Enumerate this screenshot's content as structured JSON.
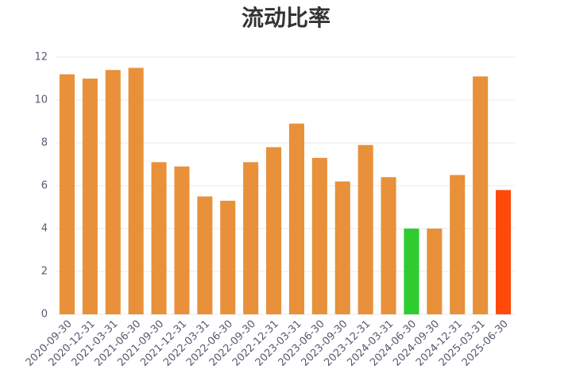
{
  "chart_data": {
    "type": "bar",
    "title": "流动比率",
    "categories": [
      "2020-09-30",
      "2020-12-31",
      "2021-03-31",
      "2021-06-30",
      "2021-09-30",
      "2021-12-31",
      "2022-03-31",
      "2022-06-30",
      "2022-09-30",
      "2022-12-31",
      "2023-03-31",
      "2023-06-30",
      "2023-09-30",
      "2023-12-31",
      "2024-03-31",
      "2024-06-30",
      "2024-09-30",
      "2024-12-31",
      "2025-03-31",
      "2025-06-30"
    ],
    "values": [
      11.2,
      11.0,
      11.4,
      11.5,
      7.1,
      6.9,
      5.5,
      5.3,
      7.1,
      7.8,
      8.9,
      7.3,
      6.2,
      7.9,
      6.4,
      4.0,
      4.0,
      6.5,
      11.1,
      5.8
    ],
    "colors": [
      "#e8913a",
      "#e8913a",
      "#e8913a",
      "#e8913a",
      "#e8913a",
      "#e8913a",
      "#e8913a",
      "#e8913a",
      "#e8913a",
      "#e8913a",
      "#e8913a",
      "#e8913a",
      "#e8913a",
      "#e8913a",
      "#e8913a",
      "#2ecc2e",
      "#e8913a",
      "#e8913a",
      "#e8913a",
      "#ff4a0a"
    ],
    "ylim": [
      0,
      12
    ],
    "yticks": [
      0,
      2,
      4,
      6,
      8,
      10,
      12
    ],
    "grid": true
  }
}
